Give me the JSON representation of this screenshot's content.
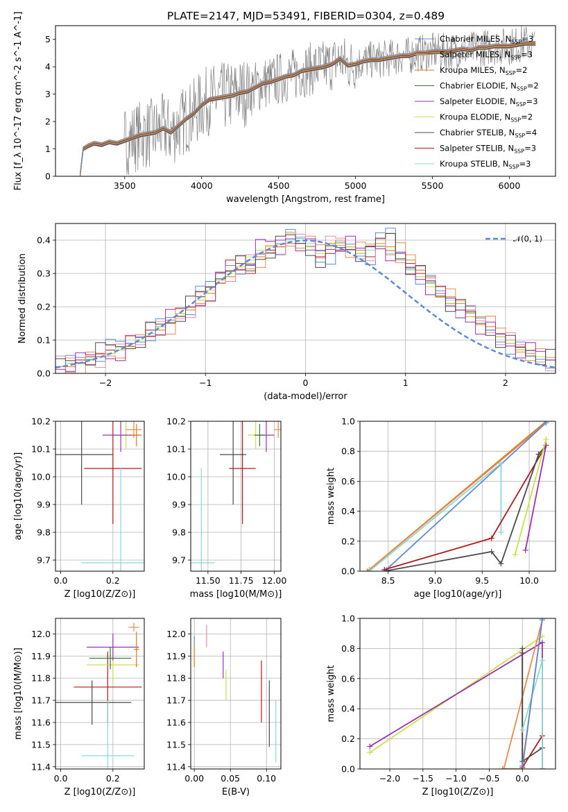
{
  "figure": {
    "title": "PLATE=2147, MJD=53491, FIBERID=0304, z=0.489"
  },
  "colors": {
    "Chabrier MILES": "#5b8bd6",
    "Salpeter MILES": "#e88a4a",
    "Kroupa MILES": "#e07b1a",
    "Chabrier ELODIE": "#3a6e3a",
    "Salpeter ELODIE": "#9b2fb0",
    "Kroupa ELODIE": "#c8e04a",
    "Chabrier STELIB": "#4a4a4a",
    "Salpeter STELIB": "#b01818",
    "Kroupa STELIB": "#88d8d8",
    "data": "#808080",
    "pink": "#e88aa8",
    "gaussian": "#5b8bd6"
  },
  "chart_data": [
    {
      "id": "spectrum",
      "type": "line",
      "xlabel": "wavelength [Angstrom, rest frame]",
      "ylabel": "Flux [f_λ 10^-17 erg cm^-2 s^-1 A^-1]",
      "xlim": [
        3050,
        6300
      ],
      "ylim": [
        0,
        5.5
      ],
      "xticks": [
        3500,
        4000,
        4500,
        5000,
        5500,
        6000
      ],
      "yticks": [
        0,
        1,
        2,
        3,
        4,
        5
      ],
      "legend_position": "upper-right",
      "legend": [
        {
          "label": "Chabrier MILES, N",
          "sub": "SSP",
          "suffix": "=3",
          "color": "Chabrier MILES"
        },
        {
          "label": "Salpeter MILES, N",
          "sub": "SSP",
          "suffix": "=3",
          "color": "Salpeter MILES"
        },
        {
          "label": "Kroupa MILES, N",
          "sub": "SSP",
          "suffix": "=2",
          "color": "Kroupa MILES"
        },
        {
          "label": "Chabrier ELODIE, N",
          "sub": "SSP",
          "suffix": "=2",
          "color": "Chabrier ELODIE"
        },
        {
          "label": "Salpeter ELODIE, N",
          "sub": "SSP",
          "suffix": "=3",
          "color": "Salpeter ELODIE"
        },
        {
          "label": "Kroupa ELODIE, N",
          "sub": "SSP",
          "suffix": "=2",
          "color": "Kroupa ELODIE"
        },
        {
          "label": "Chabrier STELIB, N",
          "sub": "SSP",
          "suffix": "=4",
          "color": "Chabrier STELIB"
        },
        {
          "label": "Salpeter STELIB, N",
          "sub": "SSP",
          "suffix": "=3",
          "color": "Salpeter STELIB"
        },
        {
          "label": "Kroupa STELIB, N",
          "sub": "SSP",
          "suffix": "=3",
          "color": "Kroupa STELIB"
        }
      ],
      "data_series": {
        "name": "data",
        "x": [
          3210,
          3230,
          3260,
          3300,
          3350,
          3400,
          3450,
          3500,
          3550,
          3600,
          3650,
          3700,
          3750,
          3800,
          3850,
          3900,
          3950,
          4000,
          4050,
          4100,
          4150,
          4200,
          4250,
          4300,
          4350,
          4400,
          4450,
          4500,
          4550,
          4600,
          4650,
          4700,
          4750,
          4800,
          4850,
          4900,
          4950,
          5000,
          5050,
          5100,
          5150,
          5200,
          5250,
          5300,
          5350,
          5400,
          5450,
          5500,
          5550,
          5600,
          5650,
          5700,
          5750,
          5800,
          5850,
          5900,
          5950,
          6000,
          6050,
          6100,
          6170
        ],
        "y": [
          0.05,
          1.0,
          1.1,
          1.2,
          1.15,
          1.25,
          1.2,
          1.3,
          1.4,
          1.5,
          1.55,
          1.6,
          1.75,
          1.6,
          1.85,
          2.1,
          2.3,
          2.6,
          2.8,
          2.85,
          2.9,
          2.95,
          3.05,
          3.1,
          3.25,
          3.4,
          3.45,
          3.55,
          3.65,
          3.7,
          3.85,
          3.9,
          3.95,
          4.0,
          4.1,
          4.3,
          4.05,
          4.1,
          4.2,
          4.25,
          4.25,
          4.3,
          4.35,
          4.4,
          4.4,
          4.5,
          4.5,
          4.55,
          4.55,
          4.55,
          4.6,
          4.65,
          4.6,
          4.7,
          4.7,
          4.75,
          4.75,
          4.75,
          4.8,
          4.85,
          4.85
        ]
      }
    },
    {
      "id": "residuals",
      "type": "line",
      "xlabel": "(data-model)/error",
      "ylabel": "Normed distribution",
      "xlim": [
        -2.5,
        2.5
      ],
      "ylim": [
        0,
        0.45
      ],
      "xticks": [
        -2,
        -1,
        0,
        1,
        2
      ],
      "yticks": [
        0.0,
        0.1,
        0.2,
        0.3,
        0.4
      ],
      "grid": true,
      "legend_position": "upper-right",
      "gaussian_label": "𝒩(0, 1)",
      "bin_width": 0.1,
      "series": [
        {
          "name": "Salpeter STELIB",
          "values": [
            0.02,
            0.03,
            0.04,
            0.05,
            0.06,
            0.07,
            0.08,
            0.09,
            0.11,
            0.13,
            0.14,
            0.16,
            0.18,
            0.2,
            0.23,
            0.26,
            0.3,
            0.34,
            0.33,
            0.3,
            0.35,
            0.37,
            0.38,
            0.4,
            0.39,
            0.37,
            0.35,
            0.36,
            0.37,
            0.38,
            0.36,
            0.35,
            0.39,
            0.42,
            0.36,
            0.33,
            0.3,
            0.27,
            0.24,
            0.21,
            0.19,
            0.17,
            0.15,
            0.13,
            0.11,
            0.09,
            0.07,
            0.06,
            0.05,
            0.04
          ]
        },
        {
          "name": "Kroupa MILES",
          "values": [
            0.02,
            0.02,
            0.03,
            0.04,
            0.05,
            0.06,
            0.07,
            0.08,
            0.1,
            0.11,
            0.13,
            0.15,
            0.17,
            0.19,
            0.21,
            0.24,
            0.27,
            0.29,
            0.31,
            0.33,
            0.35,
            0.36,
            0.38,
            0.39,
            0.4,
            0.38,
            0.37,
            0.39,
            0.4,
            0.38,
            0.37,
            0.38,
            0.39,
            0.38,
            0.36,
            0.34,
            0.31,
            0.29,
            0.26,
            0.23,
            0.21,
            0.19,
            0.17,
            0.14,
            0.12,
            0.1,
            0.08,
            0.07,
            0.05,
            0.04
          ]
        },
        {
          "name": "Kroupa STELIB",
          "values": [
            0.02,
            0.03,
            0.03,
            0.04,
            0.05,
            0.06,
            0.08,
            0.09,
            0.11,
            0.12,
            0.14,
            0.16,
            0.18,
            0.2,
            0.22,
            0.25,
            0.28,
            0.3,
            0.32,
            0.34,
            0.36,
            0.38,
            0.39,
            0.4,
            0.41,
            0.39,
            0.37,
            0.38,
            0.39,
            0.37,
            0.36,
            0.37,
            0.38,
            0.36,
            0.34,
            0.32,
            0.29,
            0.27,
            0.24,
            0.22,
            0.2,
            0.18,
            0.15,
            0.13,
            0.11,
            0.09,
            0.07,
            0.06,
            0.05,
            0.04
          ]
        },
        {
          "name": "Kroupa ELODIE",
          "values": [
            0.02,
            0.03,
            0.03,
            0.04,
            0.05,
            0.06,
            0.07,
            0.09,
            0.1,
            0.12,
            0.14,
            0.16,
            0.18,
            0.2,
            0.22,
            0.25,
            0.28,
            0.3,
            0.32,
            0.35,
            0.37,
            0.38,
            0.4,
            0.42,
            0.4,
            0.38,
            0.36,
            0.38,
            0.39,
            0.38,
            0.36,
            0.38,
            0.39,
            0.37,
            0.34,
            0.31,
            0.29,
            0.26,
            0.23,
            0.21,
            0.19,
            0.17,
            0.15,
            0.13,
            0.11,
            0.09,
            0.07,
            0.06,
            0.05,
            0.04
          ]
        }
      ]
    },
    {
      "id": "age-vs-metallicity",
      "type": "scatter",
      "xlabel": "Z [log10(Z/Z⊙)]",
      "ylabel": "age [log10(age/yr)]",
      "xlim": [
        -0.02,
        0.32
      ],
      "ylim": [
        9.66,
        10.2
      ],
      "xticks": [
        0.0,
        0.2
      ],
      "yticks": [
        9.7,
        9.8,
        9.9,
        10.0,
        10.1,
        10.2
      ],
      "grid": true,
      "points": [
        {
          "series": "Chabrier STELIB",
          "x": 0.08,
          "xerr": 0.12,
          "y": 10.08,
          "yerr": 0.18
        },
        {
          "series": "Salpeter STELIB",
          "x": 0.2,
          "xerr": 0.11,
          "y": 10.03,
          "yerr": 0.2
        },
        {
          "series": "Kroupa STELIB",
          "x": 0.23,
          "xerr": 0.15,
          "y": 9.69,
          "yerr": 0.34
        },
        {
          "series": "Kroupa ELODIE",
          "x": 0.25,
          "xerr": 0.06,
          "y": 10.15,
          "yerr": 0.05
        },
        {
          "series": "Salpeter ELODIE",
          "x": 0.23,
          "xerr": 0.07,
          "y": 10.15,
          "yerr": 0.06
        },
        {
          "series": "Salpeter MILES",
          "x": 0.28,
          "xerr": 0.03,
          "y": 10.17,
          "yerr": 0.03
        },
        {
          "series": "Kroupa MILES",
          "x": 0.29,
          "xerr": 0.02,
          "y": 10.15,
          "yerr": 0.04
        }
      ]
    },
    {
      "id": "age-vs-mass",
      "type": "scatter",
      "xlabel": "mass [log10(M/M⊙)]",
      "ylabel": "",
      "xlim": [
        11.37,
        12.05
      ],
      "ylim": [
        9.66,
        10.2
      ],
      "xticks": [
        11.5,
        11.75,
        12.0
      ],
      "yticks": [
        9.7,
        9.8,
        9.9,
        10.0,
        10.1,
        10.2
      ],
      "grid": true,
      "points": [
        {
          "series": "Chabrier STELIB",
          "x": 11.69,
          "xerr": 0.1,
          "y": 10.08,
          "yerr": 0.18
        },
        {
          "series": "Salpeter STELIB",
          "x": 11.76,
          "xerr": 0.1,
          "y": 10.03,
          "yerr": 0.2
        },
        {
          "series": "Kroupa STELIB",
          "x": 11.45,
          "xerr": 0.1,
          "y": 9.69,
          "yerr": 0.34
        },
        {
          "series": "Kroupa ELODIE",
          "x": 11.86,
          "xerr": 0.06,
          "y": 10.15,
          "yerr": 0.05
        },
        {
          "series": "Salpeter ELODIE",
          "x": 11.94,
          "xerr": 0.06,
          "y": 10.15,
          "yerr": 0.06
        },
        {
          "series": "Salpeter MILES",
          "x": 12.03,
          "xerr": 0.03,
          "y": 10.17,
          "yerr": 0.03
        },
        {
          "series": "Chabrier ELODIE",
          "x": 11.89,
          "xerr": 0.04,
          "y": 10.15,
          "yerr": 0.04
        }
      ]
    },
    {
      "id": "mass-weight-vs-age",
      "type": "line",
      "xlabel": "age [log10(age/yr)]",
      "ylabel": "mass weight",
      "xlim": [
        8.2,
        10.28
      ],
      "ylim": [
        0,
        1
      ],
      "xticks": [
        8.5,
        9.0,
        9.5,
        10.0
      ],
      "yticks": [
        0.0,
        0.2,
        0.4,
        0.6,
        0.8,
        1.0
      ],
      "grid": true,
      "series": [
        {
          "name": "Kroupa MILES",
          "x": [
            8.28,
            10.18
          ],
          "y": [
            0.0,
            1.0
          ]
        },
        {
          "name": "Salpeter MILES",
          "x": [
            8.3,
            10.18
          ],
          "y": [
            0.01,
            0.99
          ]
        },
        {
          "name": "Chabrier MILES",
          "x": [
            8.48,
            10.18
          ],
          "y": [
            0.01,
            0.99
          ]
        },
        {
          "name": "Kroupa STELIB",
          "x": [
            8.3,
            9.7,
            9.7
          ],
          "y": [
            0.0,
            0.72,
            0.26
          ]
        },
        {
          "name": "Salpeter STELIB",
          "x": [
            8.46,
            9.6,
            10.18
          ],
          "y": [
            0.01,
            0.22,
            0.84
          ]
        },
        {
          "name": "Chabrier STELIB",
          "x": [
            8.46,
            9.6,
            9.7,
            10.1,
            10.18
          ],
          "y": [
            0.0,
            0.13,
            0.05,
            0.78,
            0.84
          ]
        },
        {
          "name": "Salpeter ELODIE",
          "x": [
            9.96,
            10.18
          ],
          "y": [
            0.14,
            0.84
          ]
        },
        {
          "name": "Kroupa ELODIE",
          "x": [
            9.85,
            10.18
          ],
          "y": [
            0.11,
            0.88
          ]
        }
      ]
    },
    {
      "id": "mass-vs-metallicity",
      "type": "scatter",
      "xlabel": "Z [log10(Z/Z⊙)]",
      "ylabel": "mass [log10(M/M⊙)]",
      "xlim": [
        -0.02,
        0.32
      ],
      "ylim": [
        11.39,
        12.07
      ],
      "xticks": [
        0.0,
        0.2
      ],
      "yticks": [
        11.4,
        11.5,
        11.6,
        11.7,
        11.8,
        11.9,
        12.0
      ],
      "grid": true,
      "points": [
        {
          "series": "Chabrier STELIB",
          "x": 0.12,
          "xerr": 0.15,
          "y": 11.69,
          "yerr": 0.1
        },
        {
          "series": "Salpeter STELIB",
          "x": 0.18,
          "xerr": 0.13,
          "y": 11.76,
          "yerr": 0.16
        },
        {
          "series": "Kroupa STELIB",
          "x": 0.18,
          "xerr": 0.1,
          "y": 11.45,
          "yerr": 0.25
        },
        {
          "series": "Kroupa ELODIE",
          "x": 0.2,
          "xerr": 0.1,
          "y": 11.86,
          "yerr": 0.08
        },
        {
          "series": "Salpeter ELODIE",
          "x": 0.2,
          "xerr": 0.1,
          "y": 11.94,
          "yerr": 0.06
        },
        {
          "series": "Chabrier ELODIE",
          "x": 0.19,
          "xerr": 0.08,
          "y": 11.89,
          "yerr": 0.05
        },
        {
          "series": "Salpeter MILES",
          "x": 0.28,
          "xerr": 0.02,
          "y": 12.03,
          "yerr": 0.02
        },
        {
          "series": "Kroupa MILES",
          "x": 0.29,
          "xerr": 0.01,
          "y": 11.93,
          "yerr": 0.08
        }
      ]
    },
    {
      "id": "mass-vs-extinction",
      "type": "scatter",
      "xlabel": "E(B-V)",
      "ylabel": "",
      "xlim": [
        -0.005,
        0.12
      ],
      "ylim": [
        11.39,
        12.07
      ],
      "xticks": [
        0.0,
        0.05,
        0.1
      ],
      "yticks": [
        11.4,
        11.5,
        11.6,
        11.7,
        11.8,
        11.9,
        12.0
      ],
      "grid": true,
      "points": [
        {
          "series": "Kroupa MILES",
          "x": 0.0,
          "y": 11.9,
          "yerr": 0.05
        },
        {
          "series": "Chabrier MILES",
          "x": 0.0,
          "y": 11.97,
          "yerr": 0.02
        },
        {
          "series": "pink",
          "x": 0.017,
          "y": 11.99,
          "yerr": 0.05
        },
        {
          "series": "Salpeter ELODIE",
          "x": 0.04,
          "y": 11.86,
          "yerr": 0.06
        },
        {
          "series": "Kroupa ELODIE",
          "x": 0.044,
          "y": 11.77,
          "yerr": 0.07
        },
        {
          "series": "Salpeter STELIB",
          "x": 0.093,
          "y": 11.74,
          "yerr": 0.14
        },
        {
          "series": "Chabrier STELIB",
          "x": 0.104,
          "y": 11.64,
          "yerr": 0.15
        },
        {
          "series": "Kroupa STELIB",
          "x": 0.113,
          "y": 11.56,
          "yerr": 0.14
        }
      ]
    },
    {
      "id": "mass-weight-vs-metallicity",
      "type": "line",
      "xlabel": "Z [log10(Z/Z⊙)]",
      "ylabel": "mass weight",
      "xlim": [
        -2.45,
        0.5
      ],
      "ylim": [
        0,
        1
      ],
      "xticks": [
        -2.0,
        -1.5,
        -1.0,
        -0.5,
        0.0
      ],
      "yticks": [
        0.0,
        0.2,
        0.4,
        0.6,
        0.8,
        1.0
      ],
      "grid": true,
      "series": [
        {
          "name": "Kroupa ELODIE",
          "x": [
            -2.3,
            0.3
          ],
          "y": [
            0.11,
            0.88
          ]
        },
        {
          "name": "Salpeter ELODIE",
          "x": [
            -2.3,
            0.3,
            0.3
          ],
          "y": [
            0.15,
            0.84,
            0.0
          ]
        },
        {
          "name": "Kroupa MILES",
          "x": [
            -0.3,
            0.0,
            0.3
          ],
          "y": [
            0.0,
            0.0,
            1.0
          ]
        },
        {
          "name": "Salpeter MILES",
          "x": [
            -0.28,
            0.3
          ],
          "y": [
            0.0,
            0.99
          ]
        },
        {
          "name": "Salpeter STELIB",
          "x": [
            0.0,
            0.0,
            0.3,
            0.3
          ],
          "y": [
            0.77,
            0.01,
            0.22,
            0.0
          ]
        },
        {
          "name": "Chabrier STELIB",
          "x": [
            0.0,
            0.0,
            0.3
          ],
          "y": [
            0.8,
            0.05,
            0.14
          ]
        },
        {
          "name": "Kroupa STELIB",
          "x": [
            0.0,
            0.3,
            0.3
          ],
          "y": [
            0.26,
            0.72,
            0.0
          ]
        },
        {
          "name": "Chabrier MILES",
          "x": [
            0.0,
            0.3
          ],
          "y": [
            0.02,
            0.99
          ]
        }
      ]
    }
  ]
}
